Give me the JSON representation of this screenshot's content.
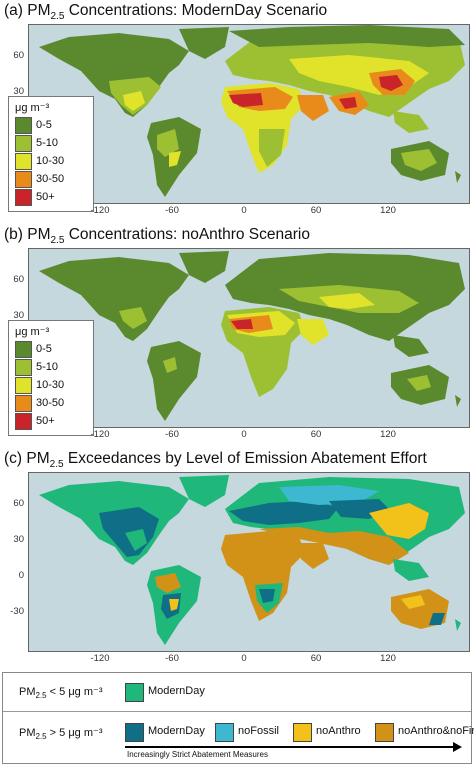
{
  "panels": [
    {
      "id": "a",
      "title_prefix": "(a) PM",
      "title_sub": "2.5",
      "title_suffix": " Concentrations: ModernDay Scenario",
      "legend": {
        "title": "μg m⁻³",
        "items": [
          {
            "label": "0-5",
            "color": "#5b8a2e"
          },
          {
            "label": "5-10",
            "color": "#9dc033"
          },
          {
            "label": "10-30",
            "color": "#e0e32a"
          },
          {
            "label": "30-50",
            "color": "#e98b1b"
          },
          {
            "label": "50+",
            "color": "#c8242a"
          }
        ]
      }
    },
    {
      "id": "b",
      "title_prefix": "(b) PM",
      "title_sub": "2.5",
      "title_suffix": " Concentrations: noAnthro Scenario",
      "legend": {
        "title": "μg m⁻³",
        "items": [
          {
            "label": "0-5",
            "color": "#5b8a2e"
          },
          {
            "label": "5-10",
            "color": "#9dc033"
          },
          {
            "label": "10-30",
            "color": "#e0e32a"
          },
          {
            "label": "30-50",
            "color": "#e98b1b"
          },
          {
            "label": "50+",
            "color": "#c8242a"
          }
        ]
      }
    },
    {
      "id": "c",
      "title_prefix": "(c) PM",
      "title_sub": "2.5",
      "title_suffix": " Exceedances by Level of Emission Abatement Effort"
    }
  ],
  "axis": {
    "y_ticks": [
      "60",
      "30",
      "0",
      "-30"
    ],
    "x_ticks": [
      "-120",
      "-60",
      "0",
      "60",
      "120"
    ]
  },
  "colors": {
    "ocean": "#c4d8de",
    "conc_0_5": "#5b8a2e",
    "conc_5_10": "#9dc033",
    "conc_10_30": "#e0e32a",
    "conc_30_50": "#e98b1b",
    "conc_50p": "#c8242a",
    "exc_modernday_below": "#1fb87a",
    "exc_modernday": "#0f6f86",
    "exc_nofossil": "#3db8d0",
    "exc_noanthro": "#f2c21b",
    "exc_noanthro_nofire": "#d29217"
  },
  "bottom_legend": {
    "row1_prefix": "PM",
    "row1_sub": "2.5",
    "row1_suffix": " < 5 μg m⁻³",
    "row1_item": "ModernDay",
    "row2_prefix": "PM",
    "row2_sub": "2.5",
    "row2_suffix": " > 5 μg m⁻³",
    "row2_items": [
      "ModernDay",
      "noFossil",
      "noAnthro",
      "noAnthro&noFire"
    ],
    "arrow_text": "Increasingly Strict Abatement Measures"
  }
}
